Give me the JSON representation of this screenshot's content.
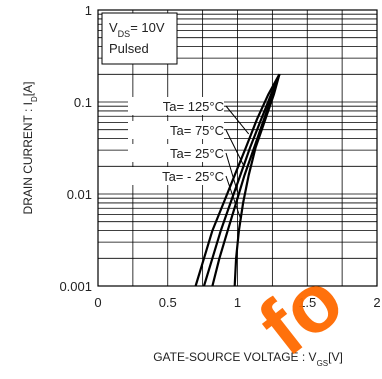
{
  "chart_data": {
    "type": "line",
    "title": "",
    "xlabel": "GATE-SOURCE VOLTAGE : V",
    "xlabel_sub": "GS",
    "xlabel_unit": "[V]",
    "ylabel": "DRAIN CURRENT : I",
    "ylabel_sub": "D",
    "ylabel_unit": "[A]",
    "xlim": [
      0,
      2
    ],
    "ylim": [
      0.001,
      1
    ],
    "yscale": "log",
    "grid": true,
    "x_ticks": [
      {
        "value": 0,
        "label": "0"
      },
      {
        "value": 0.5,
        "label": "0.5"
      },
      {
        "value": 1,
        "label": "1"
      },
      {
        "value": 1.5,
        "label": "1.5"
      },
      {
        "value": 2,
        "label": "2"
      }
    ],
    "y_ticks": [
      {
        "value": 1,
        "label": "1"
      },
      {
        "value": 0.1,
        "label": "0.1"
      },
      {
        "value": 0.01,
        "label": "0.01"
      },
      {
        "value": 0.001,
        "label": "0.001"
      }
    ],
    "conditions": {
      "line1_main": "V",
      "line1_sub": "DS",
      "line1_rest": "= 10V",
      "line2": "Pulsed"
    },
    "series": [
      {
        "name": "Ta= 125°C",
        "points": [
          [
            0.7,
            0.001
          ],
          [
            0.76,
            0.002
          ],
          [
            0.82,
            0.004
          ],
          [
            0.9,
            0.008
          ],
          [
            0.98,
            0.016
          ],
          [
            1.06,
            0.032
          ],
          [
            1.14,
            0.065
          ],
          [
            1.22,
            0.12
          ],
          [
            1.3,
            0.2
          ]
        ]
      },
      {
        "name": "Ta= 75°C",
        "points": [
          [
            0.76,
            0.001
          ],
          [
            0.82,
            0.002
          ],
          [
            0.88,
            0.004
          ],
          [
            0.95,
            0.008
          ],
          [
            1.02,
            0.016
          ],
          [
            1.09,
            0.032
          ],
          [
            1.17,
            0.065
          ],
          [
            1.24,
            0.12
          ],
          [
            1.3,
            0.2
          ]
        ]
      },
      {
        "name": "Ta= 25°C",
        "points": [
          [
            0.82,
            0.001
          ],
          [
            0.87,
            0.002
          ],
          [
            0.93,
            0.004
          ],
          [
            0.99,
            0.008
          ],
          [
            1.05,
            0.016
          ],
          [
            1.12,
            0.032
          ],
          [
            1.19,
            0.065
          ],
          [
            1.25,
            0.12
          ],
          [
            1.3,
            0.2
          ]
        ]
      },
      {
        "name": "Ta= - 25°C",
        "points": [
          [
            0.98,
            0.001
          ],
          [
            0.99,
            0.002
          ],
          [
            1.01,
            0.004
          ],
          [
            1.04,
            0.008
          ],
          [
            1.08,
            0.016
          ],
          [
            1.13,
            0.032
          ],
          [
            1.2,
            0.065
          ],
          [
            1.26,
            0.12
          ],
          [
            1.3,
            0.2
          ]
        ]
      }
    ],
    "annotation_targets": [
      {
        "series": 0,
        "x": 1.08,
        "y": 0.045
      },
      {
        "series": 1,
        "x": 1.04,
        "y": 0.021
      },
      {
        "series": 2,
        "x": 1.0,
        "y": 0.0105
      },
      {
        "series": 3,
        "x": 1.02,
        "y": 0.0055
      }
    ],
    "watermark": "fo"
  }
}
